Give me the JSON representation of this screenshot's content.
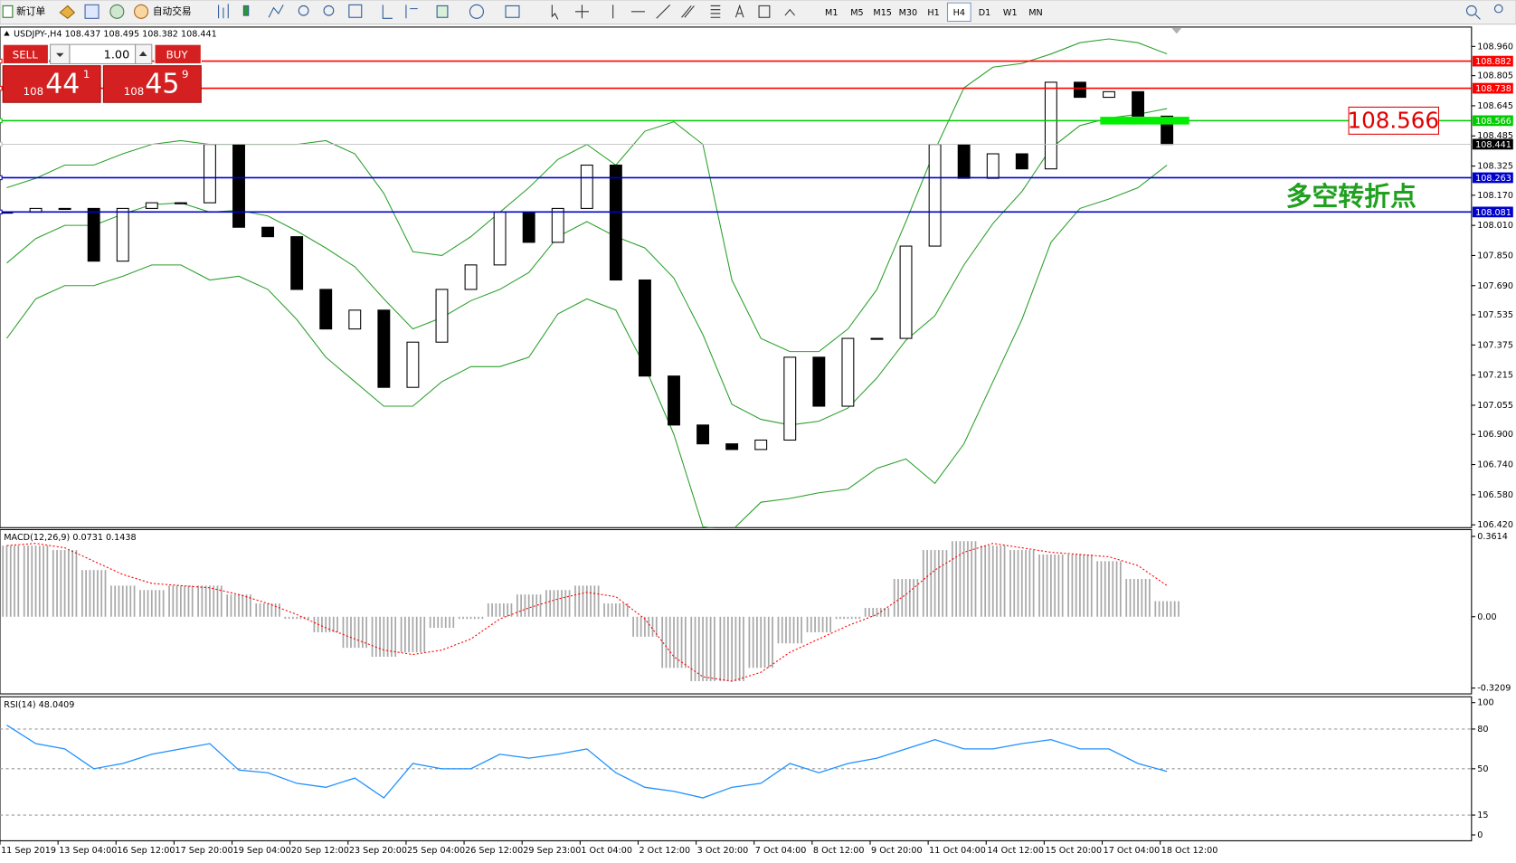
{
  "toolbar": {
    "new_order": "新订单",
    "auto_trading": "自动交易",
    "timeframes": [
      "M1",
      "M5",
      "M15",
      "M30",
      "H1",
      "H4",
      "D1",
      "W1",
      "MN"
    ],
    "selected": "H4"
  },
  "trade_panel": {
    "sell": "SELL",
    "volume": "1.00",
    "buy": "BUY",
    "bid": {
      "big": "108",
      "pips": "44",
      "point": "1"
    },
    "ask": {
      "big": "108",
      "pips": "45",
      "point": "9"
    }
  },
  "chart_data": [
    {
      "type": "candlestick",
      "header": "USDJPY-,H4 108.437 108.495 108.382 108.441",
      "categories": [
        "11 Sep 2019",
        null,
        "13 Sep 04:00",
        null,
        "16 Sep 12:00",
        null,
        "17 Sep 20:00",
        null,
        "19 Sep 04:00",
        null,
        "20 Sep 12:00",
        null,
        "23 Sep 20:00",
        null,
        "25 Sep 04:00",
        null,
        "26 Sep 12:00",
        null,
        "29 Sep 23:00",
        null,
        "1 Oct 04:00",
        null,
        "2 Oct 12:00",
        null,
        "3 Oct 20:00",
        null,
        "7 Oct 04:00",
        null,
        "8 Oct 12:00",
        null,
        "9 Oct 20:00",
        null,
        "11 Oct 04:00",
        null,
        "14 Oct 12:00",
        null,
        "15 Oct 20:00",
        null,
        "17 Oct 04:00",
        null,
        "18 Oct 12:00"
      ],
      "values": [
        108.08,
        108.1,
        108.1,
        107.82,
        108.1,
        108.13,
        108.13,
        108.44,
        108.0,
        107.95,
        107.67,
        107.46,
        107.56,
        107.15,
        107.39,
        107.67,
        107.8,
        108.08,
        107.92,
        108.1,
        108.33,
        107.72,
        107.21,
        106.95,
        106.85,
        106.82,
        106.87,
        107.31,
        107.05,
        107.41,
        107.41,
        107.9,
        108.44,
        108.26,
        108.39,
        108.31,
        108.77,
        108.69,
        108.72,
        108.59,
        108.44
      ],
      "color_up": "#ffffff",
      "color_down": "#000000",
      "bands": {
        "color": "#2ca02c",
        "upper": [
          108.21,
          108.26,
          108.33,
          108.33,
          108.39,
          108.44,
          108.46,
          108.44,
          108.44,
          108.44,
          108.44,
          108.46,
          108.39,
          108.18,
          107.87,
          107.85,
          107.95,
          108.08,
          108.21,
          108.36,
          108.44,
          108.33,
          108.51,
          108.56,
          108.44,
          107.72,
          107.41,
          107.34,
          107.34,
          107.46,
          107.67,
          108.03,
          108.41,
          108.74,
          108.85,
          108.87,
          108.92,
          108.98,
          109.0,
          108.98,
          108.92
        ],
        "middle": [
          107.81,
          107.94,
          108.01,
          108.01,
          108.07,
          108.12,
          108.13,
          108.08,
          108.09,
          108.06,
          107.98,
          107.89,
          107.79,
          107.62,
          107.46,
          107.52,
          107.61,
          107.67,
          107.76,
          107.95,
          108.03,
          107.95,
          107.89,
          107.73,
          107.43,
          107.06,
          106.98,
          106.95,
          106.97,
          107.04,
          107.2,
          107.4,
          107.53,
          107.8,
          108.02,
          108.19,
          108.42,
          108.54,
          108.58,
          108.6,
          108.63
        ],
        "lower": [
          107.41,
          107.62,
          107.69,
          107.69,
          107.74,
          107.8,
          107.8,
          107.72,
          107.74,
          107.67,
          107.51,
          107.31,
          107.18,
          107.05,
          107.05,
          107.18,
          107.26,
          107.26,
          107.31,
          107.54,
          107.62,
          107.56,
          107.26,
          106.9,
          106.41,
          106.39,
          106.54,
          106.56,
          106.59,
          106.61,
          106.72,
          106.77,
          106.64,
          106.85,
          107.18,
          107.51,
          107.92,
          108.1,
          108.15,
          108.21,
          108.33
        ]
      },
      "levels": [
        {
          "value": 108.882,
          "color": "#ff0000"
        },
        {
          "value": 108.738,
          "color": "#ff0000"
        },
        {
          "value": 108.566,
          "color": "#00cc00"
        },
        {
          "value": 108.441,
          "color": "#c0c0c0",
          "label_color": "#000000"
        },
        {
          "value": 108.263,
          "color": "#0000cc"
        },
        {
          "value": 108.081,
          "color": "#0000cc"
        }
      ],
      "highlight_color": "#00ee00",
      "note": "多空转折点",
      "note_color": "#1fa01f",
      "ylim": [
        106.405,
        109.063
      ],
      "yticks": [
        {
          "value": 108.96,
          "label": "108.960"
        },
        108.805,
        108.645,
        108.485,
        108.325,
        {
          "value": 108.17,
          "label": "108.170"
        },
        {
          "value": 108.01,
          "label": "108.010"
        },
        {
          "value": 107.85,
          "label": "107.850"
        },
        {
          "value": 107.69,
          "label": "107.690"
        },
        107.535,
        107.375,
        107.215,
        107.055,
        {
          "value": 106.9,
          "label": "106.900"
        },
        {
          "value": 106.74,
          "label": "106.740"
        },
        {
          "value": 106.58,
          "label": "106.580"
        },
        {
          "value": 106.42,
          "label": "106.420"
        }
      ]
    },
    {
      "type": "macd",
      "title": "MACD(12,26,9) 0.0731 0.1438",
      "values": [
        0.32,
        0.32,
        0.3,
        0.21,
        0.14,
        0.12,
        0.14,
        0.14,
        0.1,
        0.06,
        -0.01,
        -0.07,
        -0.14,
        -0.18,
        -0.16,
        -0.05,
        -0.01,
        0.06,
        0.1,
        0.12,
        0.14,
        0.06,
        -0.09,
        -0.23,
        -0.29,
        -0.29,
        -0.23,
        -0.12,
        -0.07,
        -0.01,
        0.04,
        0.17,
        0.3,
        0.34,
        0.32,
        0.3,
        0.28,
        0.28,
        0.25,
        0.17,
        0.07
      ],
      "color": "#a8a8a8",
      "signal": [
        0.32,
        0.33,
        0.31,
        0.25,
        0.19,
        0.15,
        0.14,
        0.13,
        0.1,
        0.06,
        0.01,
        -0.05,
        -0.1,
        -0.15,
        -0.17,
        -0.15,
        -0.1,
        -0.01,
        0.04,
        0.08,
        0.11,
        0.09,
        -0.01,
        -0.18,
        -0.27,
        -0.29,
        -0.25,
        -0.16,
        -0.1,
        -0.04,
        0.01,
        0.1,
        0.21,
        0.29,
        0.33,
        0.31,
        0.29,
        0.28,
        0.27,
        0.23,
        0.14
      ],
      "signal_color": "#ff0000",
      "ylim": [
        -0.347,
        0.392
      ],
      "yticks": [
        0.3614,
        {
          "value": 0,
          "label": "0.00"
        },
        -0.3209
      ]
    },
    {
      "type": "line",
      "title": "RSI(14) 48.0409",
      "values": [
        83,
        69,
        65,
        50,
        54,
        61,
        65,
        69,
        49,
        47,
        39,
        36,
        43,
        28,
        54,
        50,
        50,
        61,
        58,
        61,
        65,
        47,
        36,
        33,
        28,
        36,
        39,
        54,
        47,
        54,
        58,
        65,
        72,
        65,
        65,
        69,
        72,
        65,
        65,
        54,
        48
      ],
      "color": "#1e90ff",
      "ylim": [
        -4.4,
        104.4
      ],
      "yticks": [
        100,
        80,
        50,
        15,
        0
      ],
      "levels": [
        80,
        50,
        15
      ]
    }
  ]
}
